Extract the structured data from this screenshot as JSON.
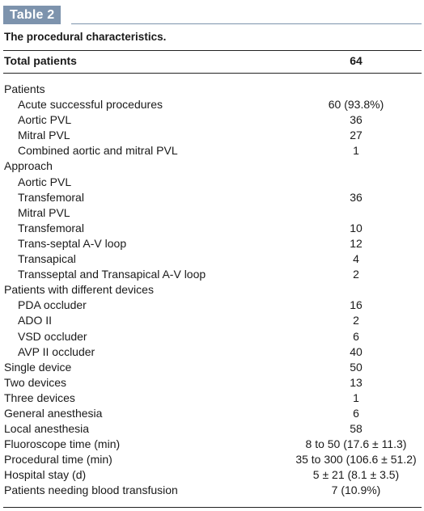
{
  "badge": "Table 2",
  "caption": "The procedural characteristics.",
  "header": {
    "label": "Total patients",
    "value": "64"
  },
  "rows": [
    {
      "label": "Patients",
      "value": "",
      "indent": false
    },
    {
      "label": "Acute successful procedures",
      "value": "60 (93.8%)",
      "indent": true
    },
    {
      "label": "Aortic PVL",
      "value": "36",
      "indent": true
    },
    {
      "label": "Mitral PVL",
      "value": "27",
      "indent": true
    },
    {
      "label": "Combined aortic and mitral PVL",
      "value": "1",
      "indent": true
    },
    {
      "label": "Approach",
      "value": "",
      "indent": false
    },
    {
      "label": "Aortic PVL",
      "value": "",
      "indent": true
    },
    {
      "label": "Transfemoral",
      "value": "36",
      "indent": true
    },
    {
      "label": "Mitral PVL",
      "value": "",
      "indent": true
    },
    {
      "label": "Transfemoral",
      "value": "10",
      "indent": true
    },
    {
      "label": "Trans-septal A-V loop",
      "value": "12",
      "indent": true
    },
    {
      "label": "Transapical",
      "value": "4",
      "indent": true
    },
    {
      "label": "Transseptal and Transapical A-V loop",
      "value": "2",
      "indent": true
    },
    {
      "label": "Patients with different devices",
      "value": "",
      "indent": false
    },
    {
      "label": "PDA occluder",
      "value": "16",
      "indent": true
    },
    {
      "label": "ADO II",
      "value": "2",
      "indent": true
    },
    {
      "label": "VSD occluder",
      "value": "6",
      "indent": true
    },
    {
      "label": "AVP II occluder",
      "value": "40",
      "indent": true
    },
    {
      "label": "Single device",
      "value": "50",
      "indent": false
    },
    {
      "label": "Two devices",
      "value": "13",
      "indent": false
    },
    {
      "label": "Three devices",
      "value": "1",
      "indent": false
    },
    {
      "label": "General anesthesia",
      "value": "6",
      "indent": false
    },
    {
      "label": "Local anesthesia",
      "value": "58",
      "indent": false
    },
    {
      "label": "Fluoroscope time (min)",
      "value": "8 to 50 (17.6 ± 11.3)",
      "indent": false
    },
    {
      "label": "Procedural time (min)",
      "value": "35 to 300 (106.6 ± 51.2)",
      "indent": false
    },
    {
      "label": "Hospital stay (d)",
      "value": "5 ± 21 (8.1 ± 3.5)",
      "indent": false
    },
    {
      "label": "Patients needing blood transfusion",
      "value": "7 (10.9%)",
      "indent": false
    }
  ]
}
